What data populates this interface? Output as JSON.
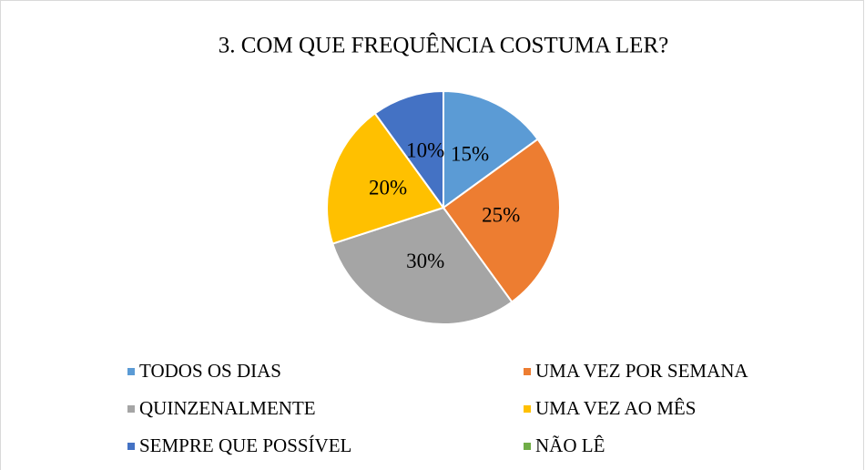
{
  "chart_data": {
    "type": "pie",
    "title": "3. COM QUE FREQUÊNCIA COSTUMA LER?",
    "categories": [
      "TODOS OS DIAS",
      "UMA VEZ POR SEMANA",
      "QUINZENALMENTE",
      "UMA VEZ AO MÊS",
      "SEMPRE QUE POSSÍVEL",
      "NÃO LÊ"
    ],
    "values": [
      15,
      25,
      30,
      20,
      10,
      0
    ],
    "value_labels": [
      "15%",
      "25%",
      "30%",
      "20%",
      "10%",
      null
    ],
    "colors": [
      "#5b9bd5",
      "#ed7d31",
      "#a5a5a5",
      "#ffc000",
      "#4472c4",
      "#70ad47"
    ],
    "legend": "bottom"
  }
}
